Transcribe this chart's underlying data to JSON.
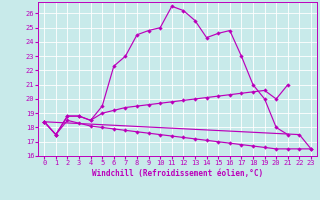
{
  "xlabel": "Windchill (Refroidissement éolien,°C)",
  "xlim": [
    -0.5,
    23.5
  ],
  "ylim": [
    16,
    26.8
  ],
  "yticks": [
    16,
    17,
    18,
    19,
    20,
    21,
    22,
    23,
    24,
    25,
    26
  ],
  "xticks": [
    0,
    1,
    2,
    3,
    4,
    5,
    6,
    7,
    8,
    9,
    10,
    11,
    12,
    13,
    14,
    15,
    16,
    17,
    18,
    19,
    20,
    21,
    22,
    23
  ],
  "background_color": "#c8eaea",
  "grid_color": "#ffffff",
  "line_color": "#bb00bb",
  "line1_x": [
    0,
    1,
    2,
    3,
    4,
    5,
    6,
    7,
    8,
    9,
    10,
    11,
    12,
    13,
    14,
    15,
    16,
    17,
    18,
    19,
    20,
    21
  ],
  "line1_y": [
    18.4,
    17.5,
    18.8,
    18.8,
    18.5,
    19.5,
    22.3,
    23.0,
    24.5,
    24.8,
    25.0,
    26.5,
    26.2,
    25.5,
    24.3,
    24.6,
    24.8,
    23.0,
    21.0,
    20.0,
    18.0,
    17.5
  ],
  "line2_x": [
    0,
    1,
    2,
    3,
    4,
    5,
    6,
    7,
    8,
    9,
    10,
    11,
    12,
    13,
    14,
    15,
    16,
    17,
    18,
    19,
    20,
    21
  ],
  "line2_y": [
    18.4,
    17.5,
    18.8,
    18.8,
    18.5,
    19.0,
    19.2,
    19.4,
    19.5,
    19.6,
    19.7,
    19.8,
    19.9,
    20.0,
    20.1,
    20.2,
    20.3,
    20.4,
    20.5,
    20.6,
    20.0,
    21.0
  ],
  "line3_x": [
    0,
    1,
    2,
    3,
    4,
    5,
    6,
    7,
    8,
    9,
    10,
    11,
    12,
    13,
    14,
    15,
    16,
    17,
    18,
    19,
    20,
    21,
    22,
    23
  ],
  "line3_y": [
    18.4,
    17.5,
    18.5,
    18.3,
    18.1,
    18.0,
    17.9,
    17.8,
    17.7,
    17.6,
    17.5,
    17.4,
    17.3,
    17.2,
    17.1,
    17.0,
    16.9,
    16.8,
    16.7,
    16.6,
    16.5,
    16.5,
    16.5,
    16.5
  ],
  "line4_x": [
    0,
    22,
    23
  ],
  "line4_y": [
    18.4,
    17.5,
    16.5
  ],
  "tick_fontsize": 5,
  "xlabel_fontsize": 5.5
}
